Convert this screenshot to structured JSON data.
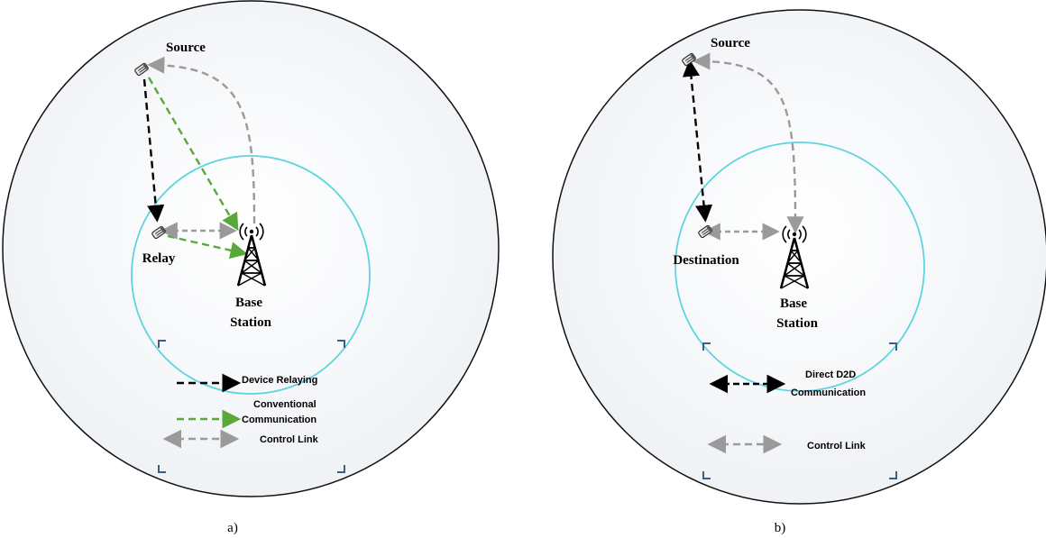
{
  "colors": {
    "outer_circle": "#111111",
    "inner_circle": "#5fd3e0",
    "device_relaying": "#000000",
    "conventional": "#5aa83a",
    "control_link": "#9a9a9a",
    "legend_bracket": "#3a5f80"
  },
  "panel_a": {
    "caption": "a)",
    "source_label": "Source",
    "relay_label": "Relay",
    "base_station_label_1": "Base",
    "base_station_label_2": "Station",
    "legend": {
      "device_relaying": "Device Relaying",
      "conventional_1": "Conventional",
      "conventional_2": "Communication",
      "control_link": "Control Link"
    }
  },
  "panel_b": {
    "caption": "b)",
    "source_label": "Source",
    "destination_label": "Destination",
    "base_station_label_1": "Base",
    "base_station_label_2": "Station",
    "legend": {
      "direct_d2d_1": "Direct D2D",
      "direct_d2d_2": "Communication",
      "control_link": "Control Link"
    }
  },
  "icons": {
    "phone": "mobile-phone-icon",
    "tower": "base-station-tower-icon"
  }
}
